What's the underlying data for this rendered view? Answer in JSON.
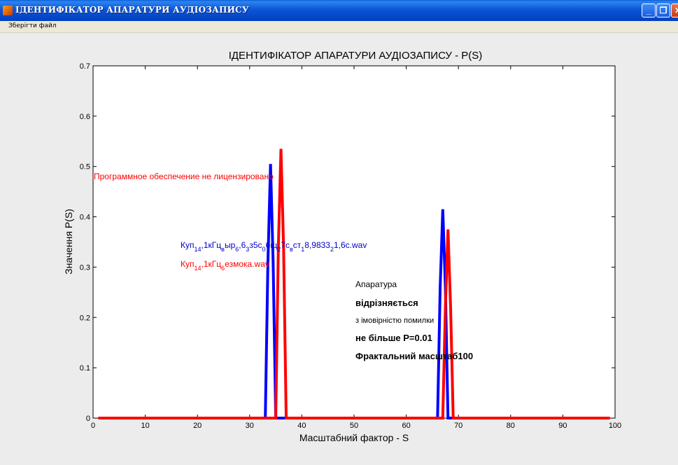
{
  "window": {
    "title": "ІДЕНТИФІКАТОР АПАРАТУРИ АУДІОЗАПИСУ",
    "minimize_icon": "minimize-icon",
    "maximize_icon": "restore-icon",
    "close_icon": "close-icon"
  },
  "menu": {
    "save_label": "Зберігти файл"
  },
  "chart_data": {
    "type": "line",
    "title": "ІДЕНТИФІКАТОР АПАРАТУРИ АУДІОЗАПИСУ  -  P(S)",
    "xlabel": "Масштабний фактор  - S",
    "ylabel": "Значення P(S)",
    "xlim": [
      0,
      100
    ],
    "ylim": [
      0,
      0.7
    ],
    "xticks": [
      "0",
      "10",
      "20",
      "30",
      "40",
      "50",
      "60",
      "70",
      "80",
      "90",
      "100"
    ],
    "yticks": [
      "0",
      "0.1",
      "0.2",
      "0.3",
      "0.4",
      "0.5",
      "0.6",
      "0.7"
    ],
    "grid": false,
    "series": [
      {
        "color": "#0000ff",
        "x": [
          1,
          33,
          33.5,
          34,
          34.5,
          35,
          66,
          66.5,
          67,
          67.5,
          68,
          99
        ],
        "y": [
          0,
          0,
          0.31,
          0.505,
          0.31,
          0,
          0,
          0.26,
          0.415,
          0.26,
          0,
          0
        ]
      },
      {
        "color": "#ff0000",
        "x": [
          1,
          35,
          35.5,
          36,
          36.5,
          37,
          67,
          67.5,
          68,
          68.5,
          69,
          99
        ],
        "y": [
          0,
          0,
          0.34,
          0.535,
          0.34,
          0,
          0,
          0.22,
          0.375,
          0.22,
          0,
          0
        ]
      }
    ],
    "annotations": {
      "license_warning": "Программное обеспечение не лицензировано",
      "file_blue": {
        "parts": [
          [
            "Куп",
            ""
          ],
          [
            "1",
            "sub"
          ],
          [
            "4",
            "sub"
          ],
          [
            ",1кГц",
            ""
          ],
          [
            "в",
            "sub"
          ],
          [
            "ыр",
            ""
          ],
          [
            "6",
            "sub"
          ],
          [
            ",6",
            ""
          ],
          [
            "",
            ""
          ],
          [
            "3",
            "sub"
          ],
          [
            "з5с",
            ""
          ],
          [
            "0",
            "sub"
          ],
          [
            "бщ",
            ""
          ],
          [
            "2",
            "sub"
          ],
          [
            "7с",
            ""
          ],
          [
            "в",
            "sub"
          ],
          [
            "ст",
            ""
          ],
          [
            "1",
            "sub"
          ],
          [
            "8,9833",
            ""
          ],
          [
            "2",
            "sub"
          ],
          [
            "1,6с.wav",
            ""
          ]
        ]
      },
      "file_red": {
        "parts": [
          [
            "Куп",
            ""
          ],
          [
            "1",
            "sub"
          ],
          [
            "4",
            "sub"
          ],
          [
            ",1кГц",
            ""
          ],
          [
            "6",
            "sub"
          ],
          [
            "езмо",
            ""
          ],
          [
            "",
            ""
          ],
          [
            "ка.wav",
            ""
          ]
        ]
      },
      "result_1": "Апаратура",
      "result_2": "відрізняється",
      "result_3": "з імовірністю помилки",
      "result_4": "не більше P=0.01",
      "result_5": "Фрактальний масштаб100"
    }
  }
}
